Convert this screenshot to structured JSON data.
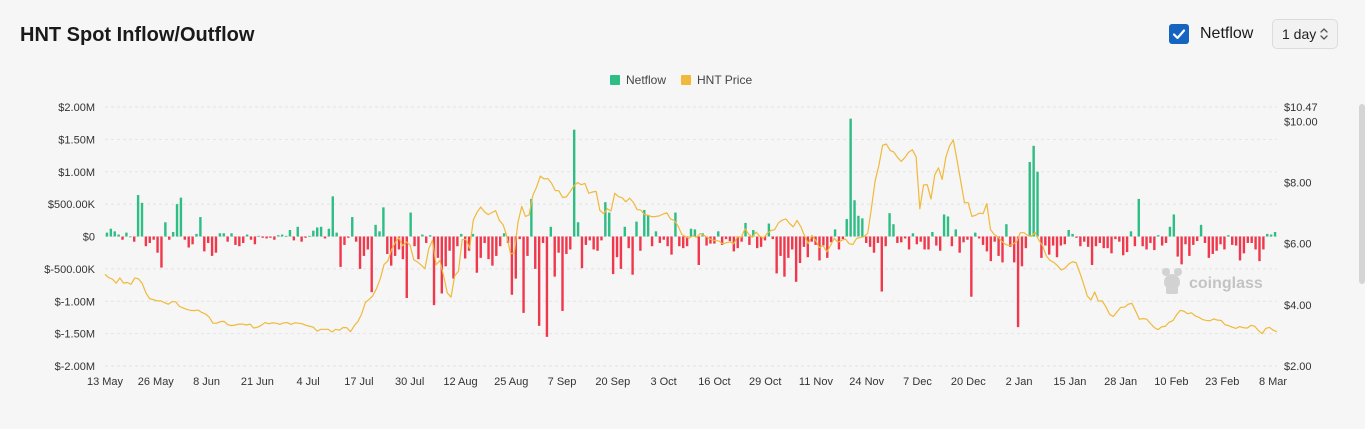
{
  "header": {
    "title": "HNT Spot Inflow/Outflow",
    "netflow_toggle_label": "Netflow",
    "netflow_checked": true,
    "interval_select": "1 day"
  },
  "watermark": "coinglass",
  "chart_data": {
    "type": "bar",
    "title": "HNT Spot Inflow/Outflow",
    "legend": {
      "placement": "top-center",
      "entries": [
        {
          "name": "Netflow",
          "color": "#2ebd85"
        },
        {
          "name": "HNT Price",
          "color": "#f0b93a"
        }
      ]
    },
    "colors": {
      "positive": "#2ebd85",
      "negative": "#f0384d",
      "price": "#f0b93a"
    },
    "grid": true,
    "y_left": {
      "range": [
        -2000000,
        2000000
      ],
      "ticks": [
        {
          "value": 2000000,
          "label": "$2.00M"
        },
        {
          "value": 1500000,
          "label": "$1.50M"
        },
        {
          "value": 1000000,
          "label": "$1.00M"
        },
        {
          "value": 500000,
          "label": "$500.00K"
        },
        {
          "value": 0,
          "label": "$0"
        },
        {
          "value": -500000,
          "label": "$-500.00K"
        },
        {
          "value": -1000000,
          "label": "$-1.00M"
        },
        {
          "value": -1500000,
          "label": "$-1.50M"
        },
        {
          "value": -2000000,
          "label": "$-2.00M"
        }
      ]
    },
    "y_right": {
      "range": [
        2.0,
        10.47
      ],
      "ticks": [
        {
          "value": 10.47,
          "label": "$10.47"
        },
        {
          "value": 10.0,
          "label": "$10.00"
        },
        {
          "value": 8.0,
          "label": "$8.00"
        },
        {
          "value": 6.0,
          "label": "$6.00"
        },
        {
          "value": 4.0,
          "label": "$4.00"
        },
        {
          "value": 2.0,
          "label": "$2.00"
        }
      ]
    },
    "x_tick_labels": [
      "13 May",
      "26 May",
      "8 Jun",
      "21 Jun",
      "4 Jul",
      "17 Jul",
      "30 Jul",
      "12 Aug",
      "25 Aug",
      "7 Sep",
      "20 Sep",
      "3 Oct",
      "16 Oct",
      "29 Oct",
      "11 Nov",
      "24 Nov",
      "7 Dec",
      "20 Dec",
      "2 Jan",
      "15 Jan",
      "28 Jan",
      "10 Feb",
      "23 Feb",
      "8 Mar"
    ],
    "series": [
      {
        "name": "Netflow",
        "type": "bar",
        "values": [
          60000,
          120000,
          80000,
          30000,
          -50000,
          60000,
          0,
          -80000,
          640000,
          520000,
          -150000,
          -100000,
          -50000,
          -250000,
          -480000,
          220000,
          -50000,
          70000,
          500000,
          600000,
          -50000,
          -170000,
          -120000,
          40000,
          300000,
          -230000,
          -100000,
          -300000,
          -250000,
          50000,
          50000,
          -80000,
          50000,
          -130000,
          -150000,
          -100000,
          30000,
          -50000,
          -120000,
          10000,
          -20000,
          -30000,
          -20000,
          -50000,
          20000,
          30000,
          10000,
          100000,
          -60000,
          150000,
          -80000,
          -20000,
          10000,
          90000,
          140000,
          150000,
          -30000,
          120000,
          620000,
          60000,
          -470000,
          -130000,
          -20000,
          300000,
          -80000,
          -500000,
          -300000,
          -200000,
          -860000,
          180000,
          80000,
          450000,
          -270000,
          -450000,
          -300000,
          -200000,
          -350000,
          -950000,
          370000,
          -150000,
          -350000,
          30000,
          -100000,
          20000,
          -1060000,
          -330000,
          -880000,
          -460000,
          -220000,
          -650000,
          -150000,
          40000,
          -340000,
          -220000,
          40000,
          -560000,
          -330000,
          -100000,
          -350000,
          -450000,
          -300000,
          -150000,
          50000,
          -100000,
          -900000,
          -650000,
          -40000,
          -1180000,
          -300000,
          580000,
          -500000,
          -1380000,
          -100000,
          -1550000,
          150000,
          -620000,
          -250000,
          -1150000,
          -270000,
          -200000,
          1650000,
          220000,
          -490000,
          -130000,
          -60000,
          -200000,
          -220000,
          -60000,
          530000,
          370000,
          -580000,
          -320000,
          -500000,
          150000,
          -180000,
          -590000,
          230000,
          -220000,
          410000,
          330000,
          -150000,
          80000,
          -100000,
          -50000,
          -150000,
          -280000,
          370000,
          -150000,
          -180000,
          -150000,
          120000,
          110000,
          -440000,
          50000,
          -140000,
          -110000,
          -110000,
          80000,
          -130000,
          -40000,
          -70000,
          -230000,
          -180000,
          -80000,
          210000,
          -130000,
          100000,
          -180000,
          -160000,
          -60000,
          200000,
          -40000,
          -570000,
          -300000,
          -620000,
          -330000,
          -200000,
          -700000,
          -410000,
          -160000,
          -320000,
          -80000,
          -130000,
          -370000,
          -140000,
          -330000,
          -90000,
          110000,
          -200000,
          -40000,
          270000,
          1820000,
          560000,
          320000,
          280000,
          -100000,
          -160000,
          -250000,
          -100000,
          -850000,
          -150000,
          360000,
          190000,
          -100000,
          -90000,
          -30000,
          -200000,
          50000,
          -120000,
          -80000,
          -200000,
          -200000,
          70000,
          -140000,
          -220000,
          340000,
          310000,
          -150000,
          110000,
          -250000,
          -90000,
          -50000,
          -930000,
          60000,
          -30000,
          -130000,
          -230000,
          -380000,
          -80000,
          -300000,
          -400000,
          190000,
          -160000,
          -400000,
          -1400000,
          -460000,
          -180000,
          1150000,
          1400000,
          1000000,
          -330000,
          -140000,
          -280000,
          -140000,
          -320000,
          -140000,
          -120000,
          100000,
          40000,
          -20000,
          -150000,
          -80000,
          -160000,
          -440000,
          -150000,
          -100000,
          -180000,
          -180000,
          -260000,
          -40000,
          -80000,
          -290000,
          -240000,
          80000,
          -150000,
          580000,
          -150000,
          -200000,
          -100000,
          -210000,
          20000,
          -140000,
          -100000,
          150000,
          340000,
          -310000,
          -430000,
          -120000,
          -300000,
          -130000,
          -70000,
          180000,
          -100000,
          -330000,
          -270000,
          -220000,
          -120000,
          -200000,
          20000,
          -130000,
          -140000,
          -370000,
          -260000,
          -100000,
          -100000,
          -200000,
          -380000,
          -200000,
          40000,
          30000,
          70000
        ],
        "value_range_estimated": true
      },
      {
        "name": "HNT Price",
        "type": "line",
        "values": [
          5.0,
          4.89,
          4.84,
          4.71,
          4.88,
          4.71,
          4.73,
          4.67,
          4.88,
          4.85,
          4.7,
          4.39,
          4.2,
          4.17,
          4.13,
          4.13,
          4.07,
          4.02,
          4.1,
          4.1,
          3.95,
          3.9,
          3.85,
          3.82,
          3.81,
          3.83,
          3.75,
          3.7,
          3.6,
          3.4,
          3.4,
          3.45,
          3.46,
          3.35,
          3.32,
          3.34,
          3.37,
          3.37,
          3.34,
          3.37,
          3.24,
          3.27,
          3.33,
          3.42,
          3.38,
          3.41,
          3.4,
          3.36,
          3.41,
          3.42,
          3.36,
          3.41,
          3.4,
          3.38,
          3.33,
          3.3,
          3.27,
          3.14,
          3.2,
          3.2,
          3.2,
          3.11,
          3.2,
          3.17,
          3.26,
          3.25,
          3.12,
          3.32,
          3.46,
          3.71,
          4.08,
          4.18,
          4.3,
          4.54,
          4.86,
          5.32,
          5.43,
          5.8,
          6.04,
          6.2,
          5.93,
          6.06,
          5.95,
          5.47,
          5.4,
          5.3,
          5.18,
          5.83,
          6.11,
          5.31,
          5.45,
          4.95,
          4.39,
          4.25,
          4.95,
          5.1,
          6.13,
          6.14,
          5.85,
          6.78,
          7.03,
          7.2,
          7.04,
          6.95,
          7.02,
          7.08,
          6.76,
          6.62,
          6.24,
          5.67,
          5.7,
          6.7,
          7.22,
          6.89,
          6.94,
          7.58,
          7.85,
          8.21,
          8.12,
          8.13,
          7.98,
          7.74,
          7.73,
          7.51,
          7.53,
          7.7,
          7.89,
          8.0,
          7.93,
          7.97,
          7.65,
          7.69,
          7.71,
          7.09,
          6.98,
          7.14,
          7.07,
          7.65,
          7.54,
          7.5,
          7.37,
          7.49,
          7.35,
          7.12,
          7.1,
          6.95,
          6.93,
          6.88,
          6.89,
          6.91,
          6.97,
          7.01,
          6.81,
          6.76,
          6.58,
          6.31,
          6.23,
          6.18,
          6.26,
          6.21,
          6.33,
          6.27,
          6.2,
          6.13,
          6.1,
          6.09,
          6.0,
          6.03,
          6.06,
          6.0,
          6.23,
          6.2,
          6.49,
          6.31,
          6.21,
          6.38,
          6.24,
          6.19,
          6.34,
          6.43,
          6.46,
          6.68,
          6.77,
          6.81,
          6.66,
          6.55,
          6.76,
          6.56,
          6.26,
          6.0,
          6.27,
          6.11,
          5.87,
          5.94,
          5.73,
          5.94,
          6.18,
          6.05,
          6.11,
          6.15,
          6.0,
          5.97,
          6.17,
          6.2,
          6.23,
          6.34,
          7.17,
          8.06,
          8.56,
          9.22,
          9.26,
          9.05,
          9.0,
          8.82,
          8.69,
          8.82,
          8.99,
          9.07,
          8.84,
          7.14,
          7.92,
          7.93,
          7.46,
          8.24,
          8.48,
          8.1,
          8.83,
          9.2,
          9.39,
          8.73,
          8.04,
          7.34,
          7.34,
          6.89,
          6.93,
          7.0,
          6.98,
          7.31,
          6.46,
          6.3,
          6.22,
          6.08,
          5.98,
          5.94,
          5.98,
          6.06,
          6.36,
          6.36,
          6.27,
          6.24,
          6.37,
          6.11,
          5.93,
          5.6,
          5.45,
          5.39,
          5.28,
          5.14,
          5.2,
          5.33,
          5.41,
          5.38,
          5.05,
          4.69,
          4.29,
          4.16,
          4.42,
          4.12,
          4.13,
          3.94,
          3.69,
          3.62,
          3.77,
          3.92,
          3.92,
          4.02,
          4.05,
          3.8,
          3.53,
          3.55,
          3.53,
          3.39,
          3.26,
          3.19,
          3.28,
          3.3,
          3.43,
          3.48,
          3.67,
          3.82,
          3.79,
          3.71,
          3.74,
          3.64,
          3.59,
          3.52,
          3.49,
          3.48,
          3.54,
          3.5,
          3.49,
          3.35,
          3.32,
          3.27,
          3.23,
          3.29,
          3.25,
          3.24,
          3.33,
          3.3,
          3.16,
          3.06,
          3.23,
          3.26,
          3.17,
          3.12
        ]
      }
    ]
  }
}
